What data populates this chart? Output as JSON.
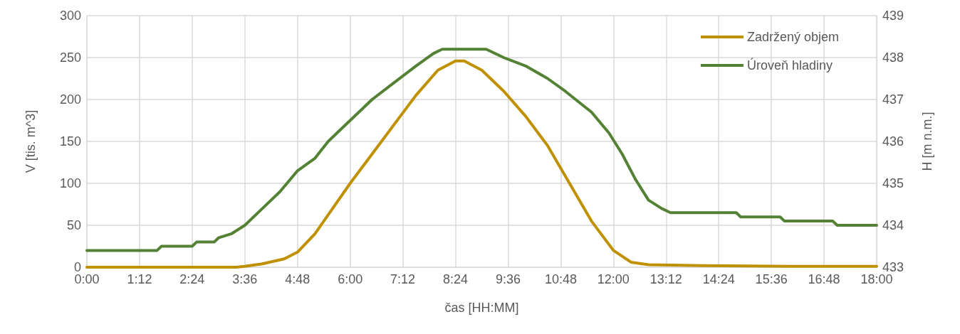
{
  "chart_data": {
    "type": "line",
    "xlabel": "čas [HH:MM]",
    "ylabel": "V [tis. m^3]",
    "y2label": "H [m n.m.]",
    "xlim": [
      0,
      18
    ],
    "xticks": [
      {
        "value": 0,
        "label": "0:00"
      },
      {
        "value": 1.2,
        "label": "1:12"
      },
      {
        "value": 2.4,
        "label": "2:24"
      },
      {
        "value": 3.6,
        "label": "3:36"
      },
      {
        "value": 4.8,
        "label": "4:48"
      },
      {
        "value": 6,
        "label": "6:00"
      },
      {
        "value": 7.2,
        "label": "7:12"
      },
      {
        "value": 8.4,
        "label": "8:24"
      },
      {
        "value": 9.6,
        "label": "9:36"
      },
      {
        "value": 10.8,
        "label": "10:48"
      },
      {
        "value": 12,
        "label": "12:00"
      },
      {
        "value": 13.2,
        "label": "13:12"
      },
      {
        "value": 14.4,
        "label": "14:24"
      },
      {
        "value": 15.6,
        "label": "15:36"
      },
      {
        "value": 16.8,
        "label": "16:48"
      },
      {
        "value": 18,
        "label": "18:00"
      }
    ],
    "ylim": [
      0,
      300
    ],
    "yticks": [
      0,
      50,
      100,
      150,
      200,
      250,
      300
    ],
    "y2lim": [
      433,
      439
    ],
    "y2ticks": [
      433,
      434,
      435,
      436,
      437,
      438,
      439
    ],
    "grid": true,
    "legend": "top right",
    "marker": "none",
    "line_style": "solid",
    "series": [
      {
        "name": "Zadržený objem",
        "color": "#bf9000",
        "x": [
          0,
          1,
          2,
          3,
          3.4,
          3.6,
          4.0,
          4.5,
          4.8,
          5.2,
          5.6,
          6.0,
          6.5,
          7.0,
          7.5,
          8.0,
          8.4,
          8.6,
          9.0,
          9.5,
          10.0,
          10.5,
          11.0,
          11.5,
          12.0,
          12.4,
          12.8,
          14,
          16,
          18
        ],
        "values": [
          0,
          0,
          0,
          0,
          0,
          1,
          4,
          10,
          18,
          40,
          70,
          100,
          135,
          170,
          205,
          235,
          246,
          246,
          235,
          210,
          180,
          145,
          100,
          55,
          20,
          6,
          3,
          2,
          1,
          1
        ]
      },
      {
        "name": "Úroveň hladiny",
        "color": "#548235",
        "axis": "y2",
        "x": [
          0,
          1.6,
          1.7,
          2.4,
          2.5,
          2.9,
          3.0,
          3.3,
          3.6,
          4.0,
          4.4,
          4.8,
          5.2,
          5.5,
          5.8,
          6.0,
          6.5,
          7.0,
          7.5,
          7.9,
          8.1,
          9.1,
          9.5,
          10.0,
          10.5,
          10.9,
          11.5,
          11.9,
          12.2,
          12.5,
          12.8,
          13.1,
          13.3,
          14.8,
          14.9,
          15.8,
          15.9,
          17.0,
          17.1,
          18
        ],
        "values": [
          433.4,
          433.4,
          433.5,
          433.5,
          433.6,
          433.6,
          433.7,
          433.8,
          434.0,
          434.4,
          434.8,
          435.3,
          435.6,
          436.0,
          436.3,
          436.5,
          437.0,
          437.4,
          437.8,
          438.1,
          438.2,
          438.2,
          438.0,
          437.8,
          437.5,
          437.2,
          436.7,
          436.2,
          435.7,
          435.1,
          434.6,
          434.4,
          434.3,
          434.3,
          434.2,
          434.2,
          434.1,
          434.1,
          434.0,
          434.0
        ]
      }
    ]
  }
}
